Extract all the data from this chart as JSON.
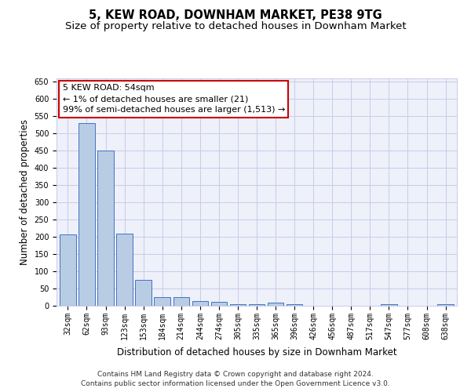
{
  "title": "5, KEW ROAD, DOWNHAM MARKET, PE38 9TG",
  "subtitle": "Size of property relative to detached houses in Downham Market",
  "xlabel": "Distribution of detached houses by size in Downham Market",
  "ylabel": "Number of detached properties",
  "categories": [
    "32sqm",
    "62sqm",
    "93sqm",
    "123sqm",
    "153sqm",
    "184sqm",
    "214sqm",
    "244sqm",
    "274sqm",
    "305sqm",
    "335sqm",
    "365sqm",
    "396sqm",
    "426sqm",
    "456sqm",
    "487sqm",
    "517sqm",
    "547sqm",
    "577sqm",
    "608sqm",
    "638sqm"
  ],
  "values": [
    207,
    530,
    451,
    210,
    75,
    26,
    25,
    14,
    12,
    5,
    5,
    8,
    5,
    1,
    1,
    0,
    0,
    5,
    0,
    0,
    5
  ],
  "bar_color": "#b8cce4",
  "bar_edge_color": "#4472c4",
  "annotation_text": "5 KEW ROAD: 54sqm\n← 1% of detached houses are smaller (21)\n99% of semi-detached houses are larger (1,513) →",
  "annotation_box_color": "#ffffff",
  "annotation_box_edge": "#cc0000",
  "ylim": [
    0,
    660
  ],
  "yticks": [
    0,
    50,
    100,
    150,
    200,
    250,
    300,
    350,
    400,
    450,
    500,
    550,
    600,
    650
  ],
  "footer_line1": "Contains HM Land Registry data © Crown copyright and database right 2024.",
  "footer_line2": "Contains public sector information licensed under the Open Government Licence v3.0.",
  "bg_color": "#eef0fa",
  "grid_color": "#c8cce8",
  "title_fontsize": 10.5,
  "subtitle_fontsize": 9.5,
  "tick_fontsize": 7,
  "ylabel_fontsize": 8.5,
  "xlabel_fontsize": 8.5,
  "annotation_fontsize": 8,
  "footer_fontsize": 6.5
}
